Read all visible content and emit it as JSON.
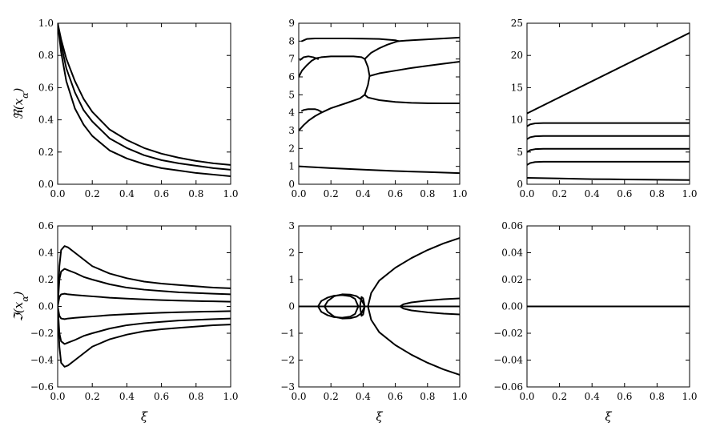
{
  "chart_data": [
    {
      "id": "re-a",
      "type": "line",
      "ylabel": "ℜ(x_α)",
      "xlabel": "",
      "xlim": [
        0,
        1
      ],
      "ylim": [
        0,
        1
      ],
      "xticks": [
        "0.0",
        "0.2",
        "0.4",
        "0.6",
        "0.8",
        "1.0"
      ],
      "yticks": [
        "0.0",
        "0.2",
        "0.4",
        "0.6",
        "0.8",
        "1.0"
      ],
      "grid": false,
      "series": [
        {
          "x": [
            0,
            0.02,
            0.05,
            0.1,
            0.15,
            0.2,
            0.3,
            0.4,
            0.5,
            0.6,
            0.7,
            0.8,
            0.9,
            1.0
          ],
          "y": [
            1.0,
            0.9,
            0.78,
            0.64,
            0.53,
            0.45,
            0.34,
            0.275,
            0.225,
            0.19,
            0.165,
            0.145,
            0.13,
            0.12
          ]
        },
        {
          "x": [
            0,
            0.02,
            0.05,
            0.1,
            0.15,
            0.2,
            0.3,
            0.4,
            0.5,
            0.6,
            0.7,
            0.8,
            0.9,
            1.0
          ],
          "y": [
            1.0,
            0.87,
            0.72,
            0.57,
            0.46,
            0.39,
            0.285,
            0.225,
            0.18,
            0.15,
            0.13,
            0.115,
            0.1,
            0.09
          ]
        },
        {
          "x": [
            0,
            0.02,
            0.05,
            0.1,
            0.15,
            0.2,
            0.3,
            0.4,
            0.5,
            0.6,
            0.7,
            0.8,
            0.9,
            1.0
          ],
          "y": [
            1.0,
            0.82,
            0.64,
            0.47,
            0.37,
            0.3,
            0.21,
            0.16,
            0.125,
            0.1,
            0.085,
            0.07,
            0.06,
            0.05
          ]
        }
      ]
    },
    {
      "id": "re-b",
      "type": "line",
      "ylabel": "",
      "xlabel": "",
      "xlim": [
        0,
        1
      ],
      "ylim": [
        0,
        9
      ],
      "xticks": [
        "0.0",
        "0.2",
        "0.4",
        "0.6",
        "0.8",
        "1.0"
      ],
      "yticks": [
        "0",
        "1",
        "2",
        "3",
        "4",
        "5",
        "6",
        "7",
        "8",
        "9"
      ],
      "grid": false,
      "series": [
        {
          "x": [
            0,
            0.2,
            0.4,
            0.6,
            0.8,
            1.0
          ],
          "y": [
            1.0,
            0.9,
            0.82,
            0.74,
            0.68,
            0.62
          ]
        },
        {
          "x": [
            0,
            0.03,
            0.06,
            0.1,
            0.14,
            0.2,
            0.3,
            0.38,
            0.41
          ],
          "y": [
            3.0,
            3.3,
            3.55,
            3.8,
            4.0,
            4.25,
            4.55,
            4.8,
            5.0
          ]
        },
        {
          "x": [
            0.41,
            0.43,
            0.5,
            0.6,
            0.7,
            0.8,
            0.9,
            1.0
          ],
          "y": [
            5.0,
            4.85,
            4.7,
            4.6,
            4.55,
            4.53,
            4.52,
            4.52
          ]
        },
        {
          "x": [
            0.02,
            0.03,
            0.06,
            0.1,
            0.12,
            0.14
          ],
          "y": [
            4.1,
            4.15,
            4.2,
            4.2,
            4.15,
            4.05
          ]
        },
        {
          "x": [
            0,
            0.02,
            0.05,
            0.08,
            0.11,
            0.14,
            0.2,
            0.28,
            0.34,
            0.39,
            0.41
          ],
          "y": [
            6.0,
            6.35,
            6.65,
            6.9,
            7.05,
            7.1,
            7.15,
            7.15,
            7.15,
            7.1,
            7.0
          ]
        },
        {
          "x": [
            0.41,
            0.43,
            0.44,
            0.43,
            0.41
          ],
          "y": [
            7.0,
            6.55,
            6.05,
            5.55,
            5.0
          ]
        },
        {
          "x": [
            0.44,
            0.5,
            0.6,
            0.7,
            0.8,
            0.9,
            1.0
          ],
          "y": [
            6.05,
            6.2,
            6.35,
            6.5,
            6.62,
            6.74,
            6.85
          ]
        },
        {
          "x": [
            0.41,
            0.45,
            0.5,
            0.55,
            0.6,
            0.62
          ],
          "y": [
            7.0,
            7.35,
            7.6,
            7.8,
            7.95,
            8.0
          ]
        },
        {
          "x": [
            0.01,
            0.03,
            0.06,
            0.09,
            0.12
          ],
          "y": [
            6.95,
            7.1,
            7.15,
            7.1,
            7.0
          ]
        },
        {
          "x": [
            0.02,
            0.05,
            0.1,
            0.2,
            0.3,
            0.4,
            0.5,
            0.6,
            0.62
          ],
          "y": [
            8.0,
            8.12,
            8.15,
            8.15,
            8.15,
            8.14,
            8.12,
            8.05,
            8.0
          ]
        },
        {
          "x": [
            0.62,
            0.7,
            0.8,
            0.9,
            1.0
          ],
          "y": [
            8.0,
            8.05,
            8.1,
            8.15,
            8.2
          ]
        }
      ]
    },
    {
      "id": "re-c",
      "type": "line",
      "ylabel": "",
      "xlabel": "",
      "xlim": [
        0,
        1
      ],
      "ylim": [
        0,
        25
      ],
      "xticks": [
        "0.0",
        "0.2",
        "0.4",
        "0.6",
        "0.8",
        "1.0"
      ],
      "yticks": [
        "0",
        "5",
        "10",
        "15",
        "20",
        "25"
      ],
      "grid": false,
      "series": [
        {
          "x": [
            0,
            1.0
          ],
          "y": [
            11.0,
            23.5
          ]
        },
        {
          "x": [
            0,
            0.02,
            0.05,
            0.1,
            0.2,
            1.0
          ],
          "y": [
            9.0,
            9.3,
            9.45,
            9.5,
            9.5,
            9.5
          ]
        },
        {
          "x": [
            0,
            0.02,
            0.05,
            0.1,
            0.2,
            1.0
          ],
          "y": [
            7.0,
            7.3,
            7.45,
            7.5,
            7.5,
            7.5
          ]
        },
        {
          "x": [
            0,
            0.02,
            0.05,
            0.1,
            0.2,
            1.0
          ],
          "y": [
            5.0,
            5.3,
            5.45,
            5.5,
            5.5,
            5.5
          ]
        },
        {
          "x": [
            0,
            0.02,
            0.05,
            0.1,
            0.2,
            1.0
          ],
          "y": [
            3.0,
            3.3,
            3.45,
            3.5,
            3.5,
            3.5
          ]
        },
        {
          "x": [
            0,
            0.2,
            0.4,
            0.6,
            0.8,
            1.0
          ],
          "y": [
            1.0,
            0.9,
            0.8,
            0.75,
            0.7,
            0.65
          ]
        }
      ]
    },
    {
      "id": "im-a",
      "type": "line",
      "ylabel": "ℑ(x_α)",
      "xlabel": "ξ",
      "xlim": [
        0,
        1
      ],
      "ylim": [
        -0.6,
        0.6
      ],
      "xticks": [
        "0.0",
        "0.2",
        "0.4",
        "0.6",
        "0.8",
        "1.0"
      ],
      "yticks": [
        "−0.6",
        "−0.4",
        "−0.2",
        "0.0",
        "0.2",
        "0.4",
        "0.6"
      ],
      "grid": false,
      "series": [
        {
          "x": [
            0,
            0.01,
            0.02,
            0.04,
            0.06,
            0.1,
            0.15,
            0.2,
            0.3,
            0.4,
            0.5,
            0.6,
            0.7,
            0.8,
            0.9,
            1.0
          ],
          "y": [
            0,
            0.3,
            0.42,
            0.45,
            0.44,
            0.4,
            0.35,
            0.3,
            0.245,
            0.21,
            0.185,
            0.17,
            0.16,
            0.15,
            0.14,
            0.135
          ]
        },
        {
          "x": [
            0,
            0.01,
            0.02,
            0.04,
            0.06,
            0.1,
            0.15,
            0.2,
            0.3,
            0.4,
            0.5,
            0.6,
            0.7,
            0.8,
            0.9,
            1.0
          ],
          "y": [
            0,
            0.2,
            0.26,
            0.28,
            0.27,
            0.25,
            0.22,
            0.2,
            0.165,
            0.14,
            0.125,
            0.115,
            0.105,
            0.1,
            0.095,
            0.09
          ]
        },
        {
          "x": [
            0,
            0.01,
            0.02,
            0.04,
            0.06,
            0.1,
            0.15,
            0.2,
            0.3,
            0.4,
            0.5,
            0.6,
            0.7,
            0.8,
            0.9,
            1.0
          ],
          "y": [
            0,
            0.07,
            0.09,
            0.095,
            0.09,
            0.085,
            0.08,
            0.075,
            0.065,
            0.058,
            0.052,
            0.047,
            0.043,
            0.04,
            0.038,
            0.035
          ]
        },
        {
          "x": [
            0,
            0.01,
            0.02,
            0.04,
            0.06,
            0.1,
            0.15,
            0.2,
            0.3,
            0.4,
            0.5,
            0.6,
            0.7,
            0.8,
            0.9,
            1.0
          ],
          "y": [
            0,
            -0.07,
            -0.09,
            -0.095,
            -0.09,
            -0.085,
            -0.08,
            -0.075,
            -0.065,
            -0.058,
            -0.052,
            -0.047,
            -0.043,
            -0.04,
            -0.038,
            -0.035
          ]
        },
        {
          "x": [
            0,
            0.01,
            0.02,
            0.04,
            0.06,
            0.1,
            0.15,
            0.2,
            0.3,
            0.4,
            0.5,
            0.6,
            0.7,
            0.8,
            0.9,
            1.0
          ],
          "y": [
            0,
            -0.2,
            -0.26,
            -0.28,
            -0.27,
            -0.25,
            -0.22,
            -0.2,
            -0.165,
            -0.14,
            -0.125,
            -0.115,
            -0.105,
            -0.1,
            -0.095,
            -0.09
          ]
        },
        {
          "x": [
            0,
            0.01,
            0.02,
            0.04,
            0.06,
            0.1,
            0.15,
            0.2,
            0.3,
            0.4,
            0.5,
            0.6,
            0.7,
            0.8,
            0.9,
            1.0
          ],
          "y": [
            0,
            -0.3,
            -0.42,
            -0.45,
            -0.44,
            -0.4,
            -0.35,
            -0.3,
            -0.245,
            -0.21,
            -0.185,
            -0.17,
            -0.16,
            -0.15,
            -0.14,
            -0.135
          ]
        }
      ]
    },
    {
      "id": "im-b",
      "type": "line",
      "ylabel": "",
      "xlabel": "ξ",
      "xlim": [
        0,
        1
      ],
      "ylim": [
        -3,
        3
      ],
      "xticks": [
        "0.0",
        "0.2",
        "0.4",
        "0.6",
        "0.8",
        "1.0"
      ],
      "yticks": [
        "−3",
        "−2",
        "−1",
        "0",
        "1",
        "2",
        "3"
      ],
      "grid": false,
      "series": [
        {
          "x": [
            0,
            1.0
          ],
          "y": [
            0,
            0
          ]
        },
        {
          "x": [
            0.12,
            0.14,
            0.18,
            0.22,
            0.27,
            0.32,
            0.35,
            0.37,
            0.35,
            0.32,
            0.27,
            0.22,
            0.18,
            0.14,
            0.12
          ],
          "y": [
            0,
            0.2,
            0.33,
            0.4,
            0.42,
            0.38,
            0.28,
            0,
            -0.28,
            -0.38,
            -0.42,
            -0.4,
            -0.33,
            -0.2,
            0
          ]
        },
        {
          "x": [
            0.16,
            0.18,
            0.22,
            0.27,
            0.32,
            0.36,
            0.39,
            0.41,
            0.39,
            0.36,
            0.32,
            0.27,
            0.22,
            0.18,
            0.16
          ],
          "y": [
            0,
            0.2,
            0.38,
            0.45,
            0.44,
            0.38,
            0.25,
            0,
            -0.25,
            -0.38,
            -0.44,
            -0.45,
            -0.38,
            -0.2,
            0
          ]
        },
        {
          "x": [
            0.38,
            0.39,
            0.4,
            0.41,
            0.4,
            0.39,
            0.38
          ],
          "y": [
            0,
            0.35,
            0.3,
            0,
            -0.3,
            -0.35,
            0
          ]
        },
        {
          "x": [
            0.43,
            0.45,
            0.5,
            0.6,
            0.7,
            0.8,
            0.9,
            1.0
          ],
          "y": [
            0,
            0.5,
            0.96,
            1.44,
            1.8,
            2.1,
            2.35,
            2.55
          ]
        },
        {
          "x": [
            0.43,
            0.45,
            0.5,
            0.6,
            0.7,
            0.8,
            0.9,
            1.0
          ],
          "y": [
            0,
            -0.5,
            -0.96,
            -1.44,
            -1.8,
            -2.1,
            -2.35,
            -2.55
          ]
        },
        {
          "x": [
            0.63,
            0.65,
            0.7,
            0.8,
            0.9,
            1.0
          ],
          "y": [
            0,
            0.08,
            0.15,
            0.22,
            0.27,
            0.3
          ]
        },
        {
          "x": [
            0.63,
            0.65,
            0.7,
            0.8,
            0.9,
            1.0
          ],
          "y": [
            0,
            -0.08,
            -0.15,
            -0.22,
            -0.27,
            -0.3
          ]
        }
      ]
    },
    {
      "id": "im-c",
      "type": "line",
      "ylabel": "",
      "xlabel": "ξ",
      "xlim": [
        0,
        1
      ],
      "ylim": [
        -0.06,
        0.06
      ],
      "xticks": [
        "0.0",
        "0.2",
        "0.4",
        "0.6",
        "0.8",
        "1.0"
      ],
      "yticks": [
        "−0.06",
        "−0.04",
        "−0.02",
        "0.00",
        "0.02",
        "0.04",
        "0.06"
      ],
      "grid": false,
      "series": [
        {
          "x": [
            0,
            1.0
          ],
          "y": [
            0,
            0
          ]
        }
      ]
    }
  ]
}
